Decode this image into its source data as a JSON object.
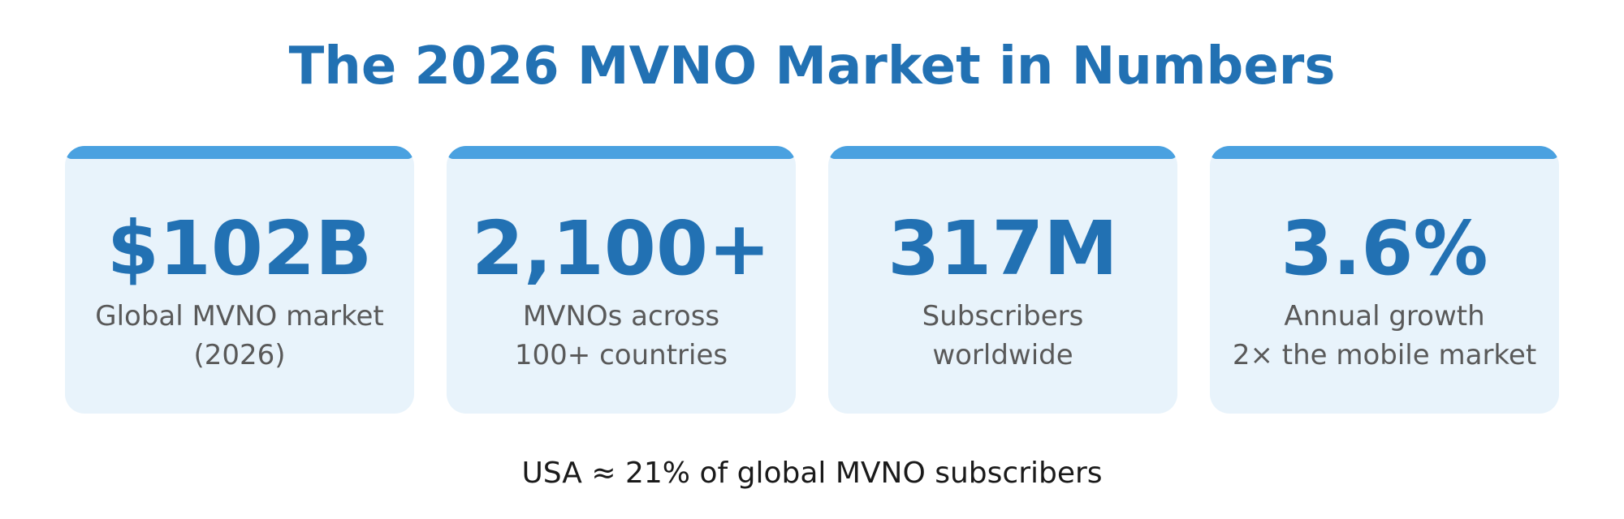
{
  "title": "The 2026 MVNO Market in Numbers",
  "colors": {
    "title": "#2271b3",
    "accent_bar": "#4aa1e0",
    "card_background": "#e8f3fb",
    "value": "#2271b3",
    "label": "#595959",
    "footnote": "#1a1a1a"
  },
  "stats": [
    {
      "value": "$102B",
      "label_line1": "Global MVNO market",
      "label_line2": "(2026)"
    },
    {
      "value": "2,100+",
      "label_line1": "MVNOs across",
      "label_line2": "100+ countries"
    },
    {
      "value": "317M",
      "label_line1": "Subscribers",
      "label_line2": "worldwide"
    },
    {
      "value": "3.6%",
      "label_line1": "Annual growth",
      "label_line2": "2× the mobile market"
    }
  ],
  "footnote": "USA ≈ 21% of global MVNO subscribers"
}
